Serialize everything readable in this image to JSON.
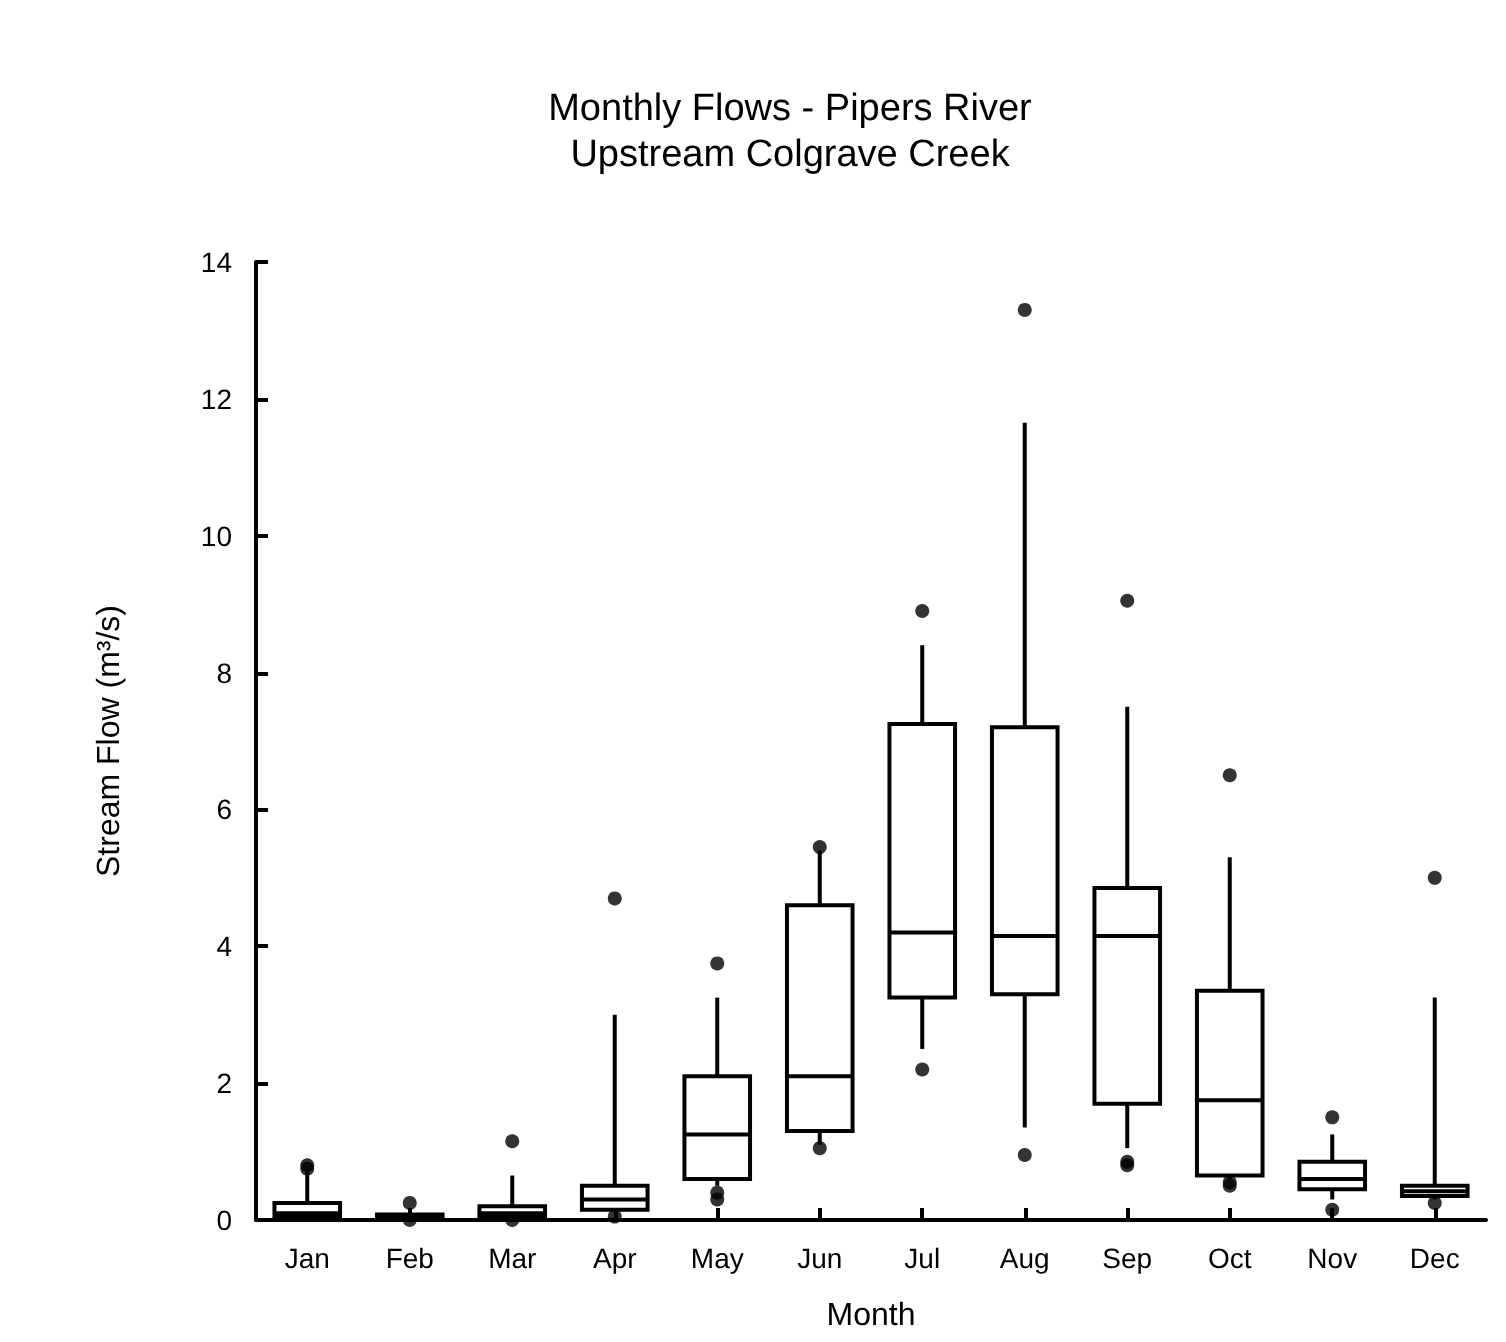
{
  "chart_data": {
    "type": "box",
    "title": "Monthly Flows - Pipers River\nUpstream Colgrave Creek",
    "xlabel": "Month",
    "ylabel": "Stream Flow (m³/s)",
    "categories": [
      "Jan",
      "Feb",
      "Mar",
      "Apr",
      "May",
      "Jun",
      "Jul",
      "Aug",
      "Sep",
      "Oct",
      "Nov",
      "Dec"
    ],
    "boxes": [
      {
        "low": 0,
        "q1": 0.05,
        "median": 0.1,
        "q3": 0.25,
        "high": 0.7,
        "outliers": [
          0.8,
          0.75
        ]
      },
      {
        "low": 0,
        "q1": 0.02,
        "median": 0.05,
        "q3": 0.08,
        "high": 0.1,
        "outliers": [
          0.25,
          0
        ]
      },
      {
        "low": 0.02,
        "q1": 0.05,
        "median": 0.1,
        "q3": 0.2,
        "high": 0.65,
        "outliers": [
          1.15,
          0
        ]
      },
      {
        "low": 0.15,
        "q1": 0.15,
        "median": 0.3,
        "q3": 0.5,
        "high": 3.0,
        "outliers": [
          4.7,
          0.05
        ]
      },
      {
        "low": 0.5,
        "q1": 0.6,
        "median": 1.25,
        "q3": 2.1,
        "high": 3.25,
        "outliers": [
          3.75,
          0.4,
          0.3
        ]
      },
      {
        "low": 1.1,
        "q1": 1.3,
        "median": 2.1,
        "q3": 4.6,
        "high": 5.4,
        "outliers": [
          5.45,
          1.05
        ]
      },
      {
        "low": 2.5,
        "q1": 3.25,
        "median": 4.2,
        "q3": 7.25,
        "high": 8.4,
        "outliers": [
          8.9,
          2.2
        ]
      },
      {
        "low": 1.35,
        "q1": 3.3,
        "median": 4.15,
        "q3": 7.2,
        "high": 11.65,
        "outliers": [
          13.3,
          0.95
        ]
      },
      {
        "low": 1.05,
        "q1": 1.7,
        "median": 4.15,
        "q3": 4.85,
        "high": 7.5,
        "outliers": [
          9.05,
          0.8,
          0.85
        ]
      },
      {
        "low": 0.6,
        "q1": 0.65,
        "median": 1.75,
        "q3": 3.35,
        "high": 5.3,
        "outliers": [
          6.5,
          0.5,
          0.55
        ]
      },
      {
        "low": 0.3,
        "q1": 0.45,
        "median": 0.6,
        "q3": 0.85,
        "high": 1.25,
        "outliers": [
          1.5,
          0.15
        ]
      },
      {
        "low": 0.3,
        "q1": 0.35,
        "median": 0.42,
        "q3": 0.5,
        "high": 3.25,
        "outliers": [
          5.0,
          0.25
        ]
      }
    ],
    "color": "#000000",
    "ylim": [
      0,
      14
    ],
    "yticks": [
      0,
      2,
      4,
      6,
      8,
      10,
      12,
      14
    ],
    "grid": false
  }
}
